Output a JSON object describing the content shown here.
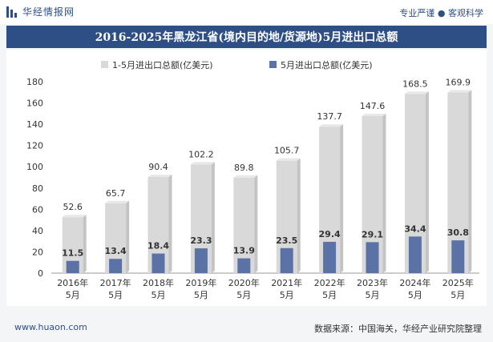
{
  "header": {
    "brand": "华经情报网",
    "tagline": "专业严谨 ● 客观科学"
  },
  "title": "2016-2025年黑龙江省(境内目的地/货源地)5月进出口总额",
  "footer": {
    "website": "www.huaon.com",
    "source": "数据来源：中国海关，华经产业研究院整理"
  },
  "colors": {
    "brand": "#2d4f86",
    "series1": "#d9d9d9",
    "series2": "#5a72a6"
  },
  "chart_data": {
    "type": "bar",
    "categories": [
      "2016年\n5月",
      "2017年\n5月",
      "2018年\n5月",
      "2019年\n5月",
      "2020年\n5月",
      "2021年\n5月",
      "2022年\n5月",
      "2023年\n5月",
      "2024年\n5月",
      "2025年\n5月"
    ],
    "series": [
      {
        "name": "1-5月进出口总额(亿美元)",
        "values": [
          52.6,
          65.7,
          90.4,
          102.2,
          89.8,
          105.7,
          137.7,
          147.6,
          168.5,
          169.9
        ]
      },
      {
        "name": "5月进出口总额(亿美元)",
        "values": [
          11.5,
          13.4,
          18.4,
          23.3,
          13.9,
          23.5,
          29.4,
          29.1,
          34.4,
          30.8
        ]
      }
    ],
    "ylim": [
      0,
      180
    ],
    "yticks": [
      0,
      20,
      40,
      60,
      80,
      100,
      120,
      140,
      160,
      180
    ],
    "legend_position": "top",
    "grid": false
  }
}
